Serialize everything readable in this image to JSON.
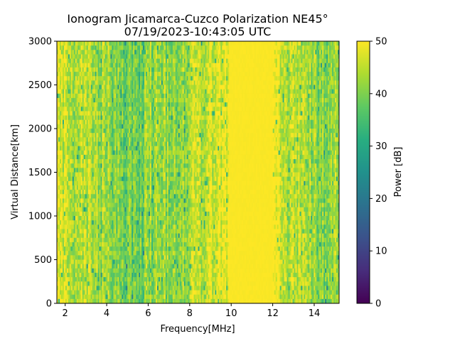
{
  "chart_data": {
    "type": "heatmap",
    "title_line1": "Ionogram Jicamarca-Cuzco Polarization NE45°",
    "title_line2": "07/19/2023-10:43:05 UTC",
    "xlabel": "Frequency[MHz]",
    "ylabel": "Virtual Distance[km]",
    "colorbar_label": "Power [dB]",
    "colormap": "viridis",
    "xlim": [
      1.6,
      15.2
    ],
    "ylim": [
      0,
      3000
    ],
    "clim": [
      0,
      50
    ],
    "x_ticks": [
      2,
      4,
      6,
      8,
      10,
      12,
      14
    ],
    "x_tick_labels": [
      "2",
      "4",
      "6",
      "8",
      "10",
      "12",
      "14"
    ],
    "y_ticks": [
      0,
      500,
      1000,
      1500,
      2000,
      2500,
      3000
    ],
    "y_tick_labels": [
      "0",
      "500",
      "1000",
      "1500",
      "2000",
      "2500",
      "3000"
    ],
    "colorbar_ticks": [
      0,
      10,
      20,
      30,
      40,
      50
    ],
    "colorbar_tick_labels": [
      "0",
      "10",
      "20",
      "30",
      "40",
      "50"
    ],
    "power_profile_by_frequency": [
      {
        "x": 1.6,
        "y": 48
      },
      {
        "x": 2.5,
        "y": 46
      },
      {
        "x": 3.0,
        "y": 44
      },
      {
        "x": 4.0,
        "y": 42
      },
      {
        "x": 5.0,
        "y": 38
      },
      {
        "x": 5.5,
        "y": 39
      },
      {
        "x": 6.5,
        "y": 42
      },
      {
        "x": 7.5,
        "y": 42
      },
      {
        "x": 8.5,
        "y": 45
      },
      {
        "x": 9.6,
        "y": 48
      },
      {
        "x": 10.0,
        "y": 50
      },
      {
        "x": 11.8,
        "y": 50
      },
      {
        "x": 12.4,
        "y": 47
      },
      {
        "x": 13.5,
        "y": 42
      },
      {
        "x": 14.5,
        "y": 41
      },
      {
        "x": 15.2,
        "y": 44
      }
    ],
    "saturated_band_mhz": [
      9.9,
      12.0
    ]
  }
}
